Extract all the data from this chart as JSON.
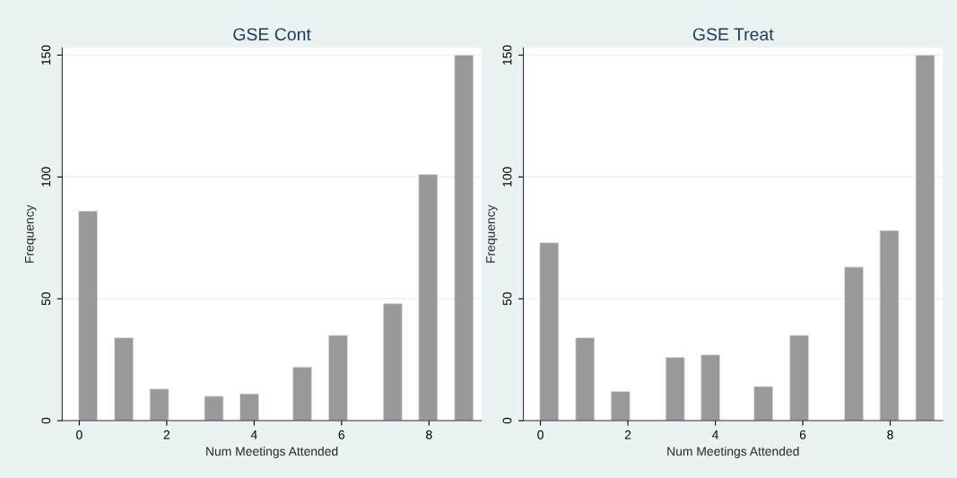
{
  "chart_data": [
    {
      "type": "bar",
      "title": "GSE Cont",
      "xlabel": "Num Meetings Attended",
      "ylabel": "Frequency",
      "x": [
        0.2,
        1.02,
        1.83,
        3.08,
        3.89,
        5.1,
        5.92,
        7.17,
        7.98,
        8.8
      ],
      "values": [
        86,
        34,
        13,
        10,
        11,
        22,
        35,
        48,
        101,
        150
      ],
      "color": "#999999",
      "xlim": [
        -0.39,
        9.2
      ],
      "xticks": [
        0,
        2,
        4,
        6,
        8
      ],
      "ylim": [
        0,
        153
      ],
      "yticks": [
        0,
        50,
        100,
        150
      ],
      "grid": "y"
    },
    {
      "type": "bar",
      "title": "GSE Treat",
      "xlabel": "Num Meetings Attended",
      "ylabel": "Frequency",
      "x": [
        0.2,
        1.02,
        1.83,
        3.08,
        3.89,
        5.1,
        5.92,
        7.17,
        7.98,
        8.8
      ],
      "values": [
        73,
        34,
        12,
        26,
        27,
        14,
        35,
        63,
        78,
        150
      ],
      "color": "#999999",
      "xlim": [
        -0.39,
        9.2
      ],
      "xticks": [
        0,
        2,
        4,
        6,
        8
      ],
      "ylim": [
        0,
        153
      ],
      "yticks": [
        0,
        50,
        100,
        150
      ],
      "grid": "y"
    }
  ]
}
